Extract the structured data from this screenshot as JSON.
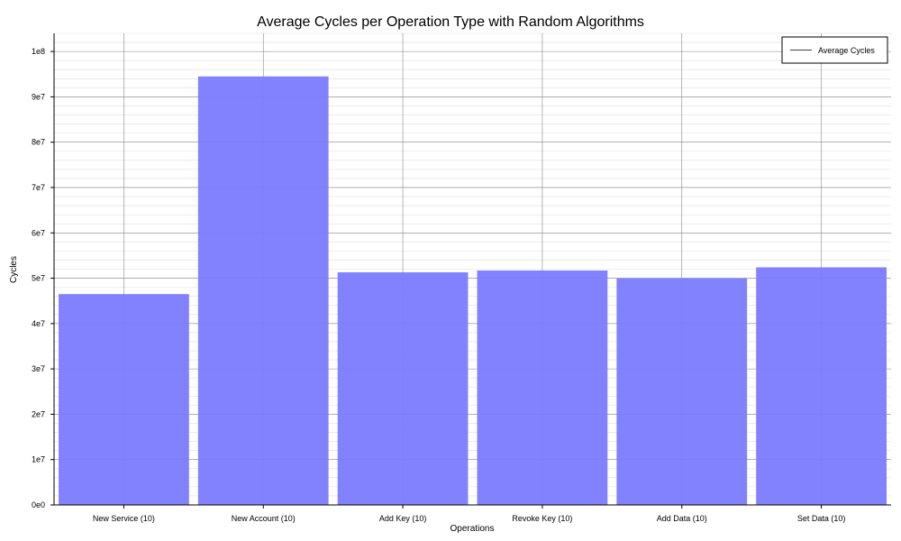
{
  "chart_data": {
    "type": "bar",
    "title": "Average Cycles per Operation Type with Random Algorithms",
    "xlabel": "Operations",
    "ylabel": "Cycles",
    "categories": [
      "New Service (10)",
      "New Account (10)",
      "Add Key (10)",
      "Revoke Key (10)",
      "Add Data (10)",
      "Set Data (10)"
    ],
    "series": [
      {
        "name": "Average Cycles",
        "values": [
          46500000,
          94500000,
          51300000,
          51700000,
          50000000,
          52400000
        ]
      }
    ],
    "ylim": [
      0,
      104000000
    ],
    "yticks": [
      0,
      10000000,
      20000000,
      30000000,
      40000000,
      50000000,
      60000000,
      70000000,
      80000000,
      90000000,
      100000000
    ],
    "ytick_labels": [
      "0e0",
      "1e7",
      "2e7",
      "3e7",
      "4e7",
      "5e7",
      "6e7",
      "7e7",
      "8e7",
      "9e7",
      "1e8"
    ],
    "grid": true,
    "minor_grid": true,
    "legend_position": "top-right",
    "colors": {
      "bar": "#7b7bff",
      "grid_major": "#888888",
      "grid_minor": "#dddddd",
      "axis": "#000000"
    }
  }
}
